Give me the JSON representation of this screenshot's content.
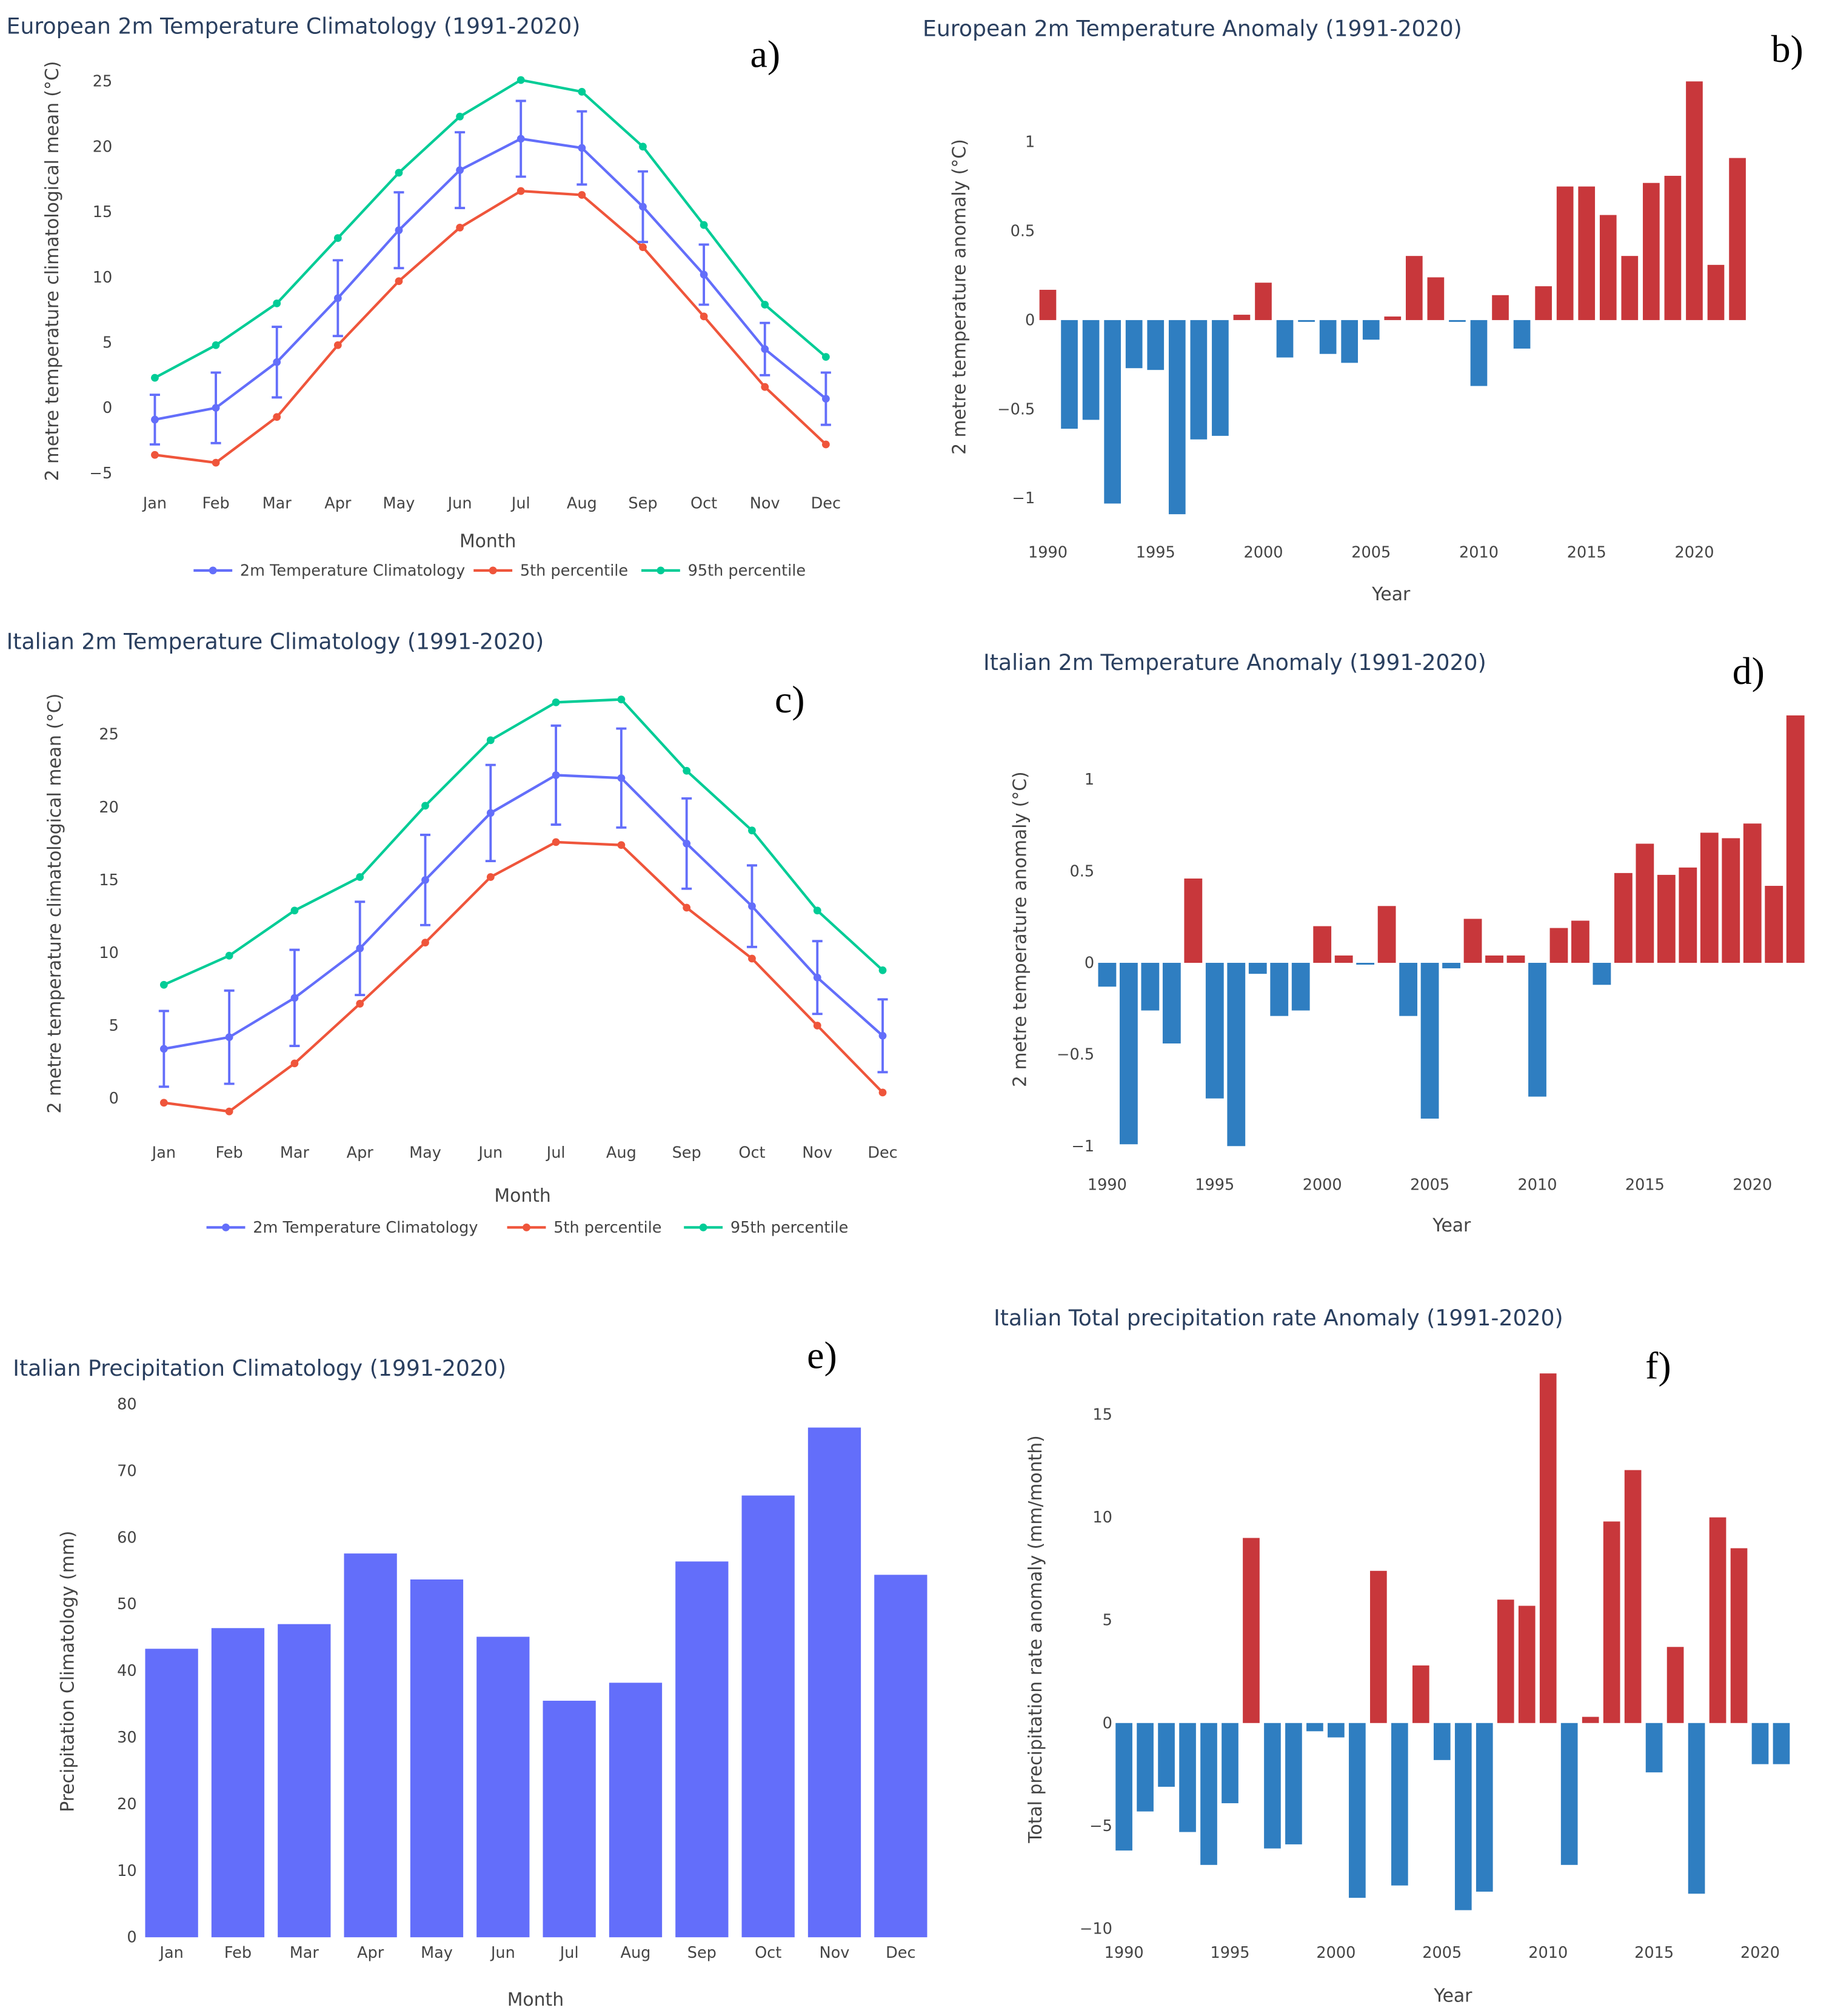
{
  "chart_data": [
    {
      "id": "a",
      "type": "line",
      "panel_label": "a)",
      "title": "European 2m Temperature Climatology (1991-2020)",
      "xlabel": "Month",
      "ylabel": "2 metre temperature climatological mean (°C)",
      "categories": [
        "Jan",
        "Feb",
        "Mar",
        "Apr",
        "May",
        "Jun",
        "Jul",
        "Aug",
        "Sep",
        "Oct",
        "Nov",
        "Dec"
      ],
      "yticks": [
        -5,
        0,
        5,
        10,
        15,
        20,
        25
      ],
      "ylim": [
        -5,
        25
      ],
      "grid": false,
      "legend": "bottom",
      "series": [
        {
          "name": "2m Temperature Climatology",
          "color": "#636efa",
          "values": [
            -0.9,
            0.0,
            3.5,
            8.4,
            13.6,
            18.2,
            20.6,
            19.9,
            15.4,
            10.2,
            4.5,
            0.7
          ],
          "error": [
            1.9,
            2.7,
            2.7,
            2.9,
            2.9,
            2.9,
            2.9,
            2.8,
            2.7,
            2.3,
            2.0,
            2.0
          ]
        },
        {
          "name": "5th percentile",
          "color": "#ef553b",
          "values": [
            -3.6,
            -4.2,
            -0.7,
            4.8,
            9.7,
            13.8,
            16.6,
            16.3,
            12.3,
            7.0,
            1.6,
            -2.8
          ]
        },
        {
          "name": "95th percentile",
          "color": "#00cc96",
          "values": [
            2.3,
            4.8,
            8.0,
            13.0,
            18.0,
            22.3,
            25.1,
            24.2,
            20.0,
            14.0,
            7.9,
            3.9
          ]
        }
      ]
    },
    {
      "id": "b",
      "type": "bar",
      "panel_label": "b)",
      "title": "European 2m Temperature Anomaly (1991-2020)",
      "xlabel": "Year",
      "ylabel": "2 metre temperature anomaly (°C)",
      "x_start": 1990,
      "xticks": [
        1990,
        1995,
        2000,
        2005,
        2010,
        2015,
        2020
      ],
      "yticks": [
        -1,
        -0.5,
        0,
        0.5,
        1
      ],
      "ytick_labels": [
        "−1",
        "−0.5",
        "0",
        "0.5",
        "1"
      ],
      "positive_color": "#c8373b",
      "negative_color": "#2f7ec1",
      "grid": false,
      "values": [
        0.17,
        -0.61,
        -0.56,
        -1.03,
        -0.27,
        -0.28,
        -1.09,
        -0.67,
        -0.65,
        0.03,
        0.21,
        -0.21,
        -0.01,
        -0.19,
        -0.24,
        -0.11,
        0.02,
        0.36,
        0.24,
        -0.01,
        -0.37,
        0.14,
        -0.16,
        0.19,
        0.75,
        0.75,
        0.59,
        0.36,
        0.77,
        0.81,
        1.34,
        0.31,
        0.91
      ]
    },
    {
      "id": "c",
      "type": "line",
      "panel_label": "c)",
      "title": "Italian 2m Temperature Climatology (1991-2020)",
      "xlabel": "Month",
      "ylabel": "2 metre temperature climatological mean (°C)",
      "categories": [
        "Jan",
        "Feb",
        "Mar",
        "Apr",
        "May",
        "Jun",
        "Jul",
        "Aug",
        "Sep",
        "Oct",
        "Nov",
        "Dec"
      ],
      "yticks": [
        0,
        5,
        10,
        15,
        20,
        25
      ],
      "ylim": [
        -1,
        28
      ],
      "grid": false,
      "legend": "bottom",
      "series": [
        {
          "name": "2m Temperature Climatology",
          "color": "#636efa",
          "values": [
            3.4,
            4.2,
            6.9,
            10.3,
            15.0,
            19.6,
            22.2,
            22.0,
            17.5,
            13.2,
            8.3,
            4.3
          ],
          "error": [
            2.6,
            3.2,
            3.3,
            3.2,
            3.1,
            3.3,
            3.4,
            3.4,
            3.1,
            2.8,
            2.5,
            2.5
          ]
        },
        {
          "name": "5th percentile",
          "color": "#ef553b",
          "values": [
            -0.3,
            -0.9,
            2.4,
            6.5,
            10.7,
            15.2,
            17.6,
            17.4,
            13.1,
            9.6,
            5.0,
            0.4
          ]
        },
        {
          "name": "95th percentile",
          "color": "#00cc96",
          "values": [
            7.8,
            9.8,
            12.9,
            15.2,
            20.1,
            24.6,
            27.2,
            27.4,
            22.5,
            18.4,
            12.9,
            8.8
          ]
        }
      ]
    },
    {
      "id": "d",
      "type": "bar",
      "panel_label": "d)",
      "title": "Italian 2m Temperature Anomaly (1991-2020)",
      "xlabel": "Year",
      "ylabel": "2 metre temperature anomaly (°C)",
      "x_start": 1990,
      "xticks": [
        1990,
        1995,
        2000,
        2005,
        2010,
        2015,
        2020
      ],
      "yticks": [
        -1,
        -0.5,
        0,
        0.5,
        1
      ],
      "ytick_labels": [
        "−1",
        "−0.5",
        "0",
        "0.5",
        "1"
      ],
      "positive_color": "#c8373b",
      "negative_color": "#2f7ec1",
      "grid": false,
      "values": [
        -0.13,
        -0.99,
        -0.26,
        -0.44,
        0.46,
        -0.74,
        -1.0,
        -0.06,
        -0.29,
        -0.26,
        0.2,
        0.04,
        -0.01,
        0.31,
        -0.29,
        -0.85,
        -0.03,
        0.24,
        0.04,
        0.04,
        -0.73,
        0.19,
        0.23,
        -0.12,
        0.49,
        0.65,
        0.48,
        0.52,
        0.71,
        0.68,
        0.76,
        0.42,
        1.35
      ]
    },
    {
      "id": "e",
      "type": "bar",
      "panel_label": "e)",
      "title": "Italian Precipitation Climatology (1991-2020)",
      "xlabel": "Month",
      "ylabel": "Precipitation Climatology (mm)",
      "categories": [
        "Jan",
        "Feb",
        "Mar",
        "Apr",
        "May",
        "Jun",
        "Jul",
        "Aug",
        "Sep",
        "Oct",
        "Nov",
        "Dec"
      ],
      "yticks": [
        0,
        10,
        20,
        30,
        40,
        50,
        60,
        70,
        80
      ],
      "ylim": [
        0,
        80
      ],
      "color": "#636efa",
      "grid": false,
      "values": [
        43.3,
        46.4,
        47.0,
        57.6,
        53.7,
        45.1,
        35.5,
        38.2,
        56.4,
        66.3,
        76.5,
        54.4
      ]
    },
    {
      "id": "f",
      "type": "bar",
      "panel_label": "f)",
      "title": "Italian Total precipitation rate Anomaly (1991-2020)",
      "xlabel": "Year",
      "ylabel": "Total precipitation rate anomaly (mm/month)",
      "x_start": 1990,
      "xticks": [
        1990,
        1995,
        2000,
        2005,
        2010,
        2015,
        2020
      ],
      "yticks": [
        -10,
        -5,
        0,
        5,
        10,
        15
      ],
      "ytick_labels": [
        "−10",
        "−5",
        "0",
        "5",
        "10",
        "15"
      ],
      "positive_color": "#c8373b",
      "negative_color": "#2f7ec1",
      "grid": false,
      "values": [
        -6.2,
        -4.3,
        -3.1,
        -5.3,
        -6.9,
        -3.9,
        9.0,
        -6.1,
        -5.9,
        -0.4,
        -0.7,
        -8.5,
        7.4,
        -7.9,
        2.8,
        -1.8,
        -9.1,
        -8.2,
        6.0,
        5.7,
        17.0,
        -6.9,
        0.3,
        9.8,
        12.3,
        -2.4,
        3.7,
        -8.3,
        10.0,
        8.5,
        -2.0,
        -2.0
      ]
    }
  ]
}
